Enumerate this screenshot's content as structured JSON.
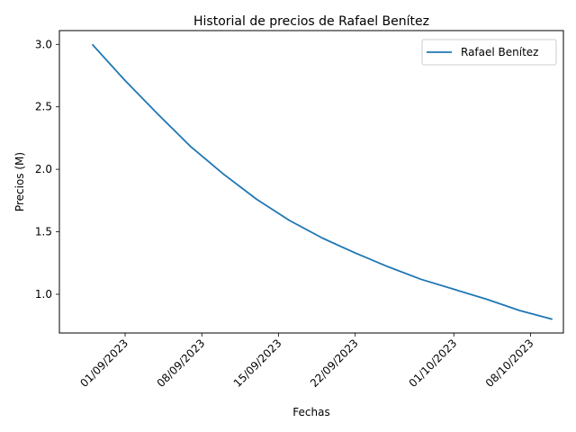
{
  "chart_data": {
    "type": "line",
    "title": "Historial de precios de Rafael Benítez",
    "xlabel": "Fechas",
    "ylabel": "Precios (M)",
    "x_ticks": [
      "01/09/2023",
      "08/09/2023",
      "15/09/2023",
      "22/09/2023",
      "01/10/2023",
      "08/10/2023"
    ],
    "y_ticks": [
      "1.0",
      "1.5",
      "2.0",
      "2.5",
      "3.0"
    ],
    "xlim": [
      "2023-08-26",
      "2023-10-11"
    ],
    "ylim": [
      0.69,
      3.11
    ],
    "grid": false,
    "legend_position": "upper right",
    "series": [
      {
        "name": "Rafael Benítez",
        "color": "#1f77b4",
        "x": [
          "2023-08-29",
          "2023-09-01",
          "2023-09-04",
          "2023-09-07",
          "2023-09-10",
          "2023-09-13",
          "2023-09-16",
          "2023-09-19",
          "2023-09-22",
          "2023-09-25",
          "2023-09-28",
          "2023-10-01",
          "2023-10-04",
          "2023-10-07",
          "2023-10-10"
        ],
        "values": [
          3.0,
          2.71,
          2.44,
          2.18,
          1.96,
          1.76,
          1.59,
          1.45,
          1.33,
          1.22,
          1.12,
          1.04,
          0.96,
          0.87,
          0.8
        ]
      }
    ]
  }
}
